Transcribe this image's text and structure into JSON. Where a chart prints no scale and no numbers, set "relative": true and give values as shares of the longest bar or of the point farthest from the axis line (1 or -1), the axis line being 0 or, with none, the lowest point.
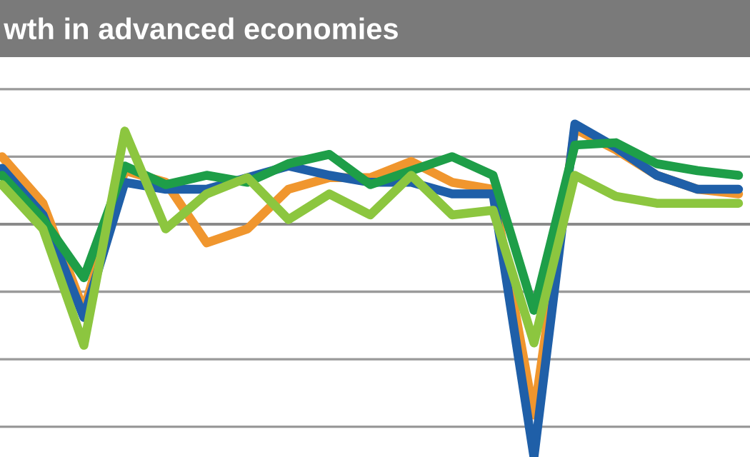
{
  "chart_data": {
    "type": "line",
    "title": "wth in advanced economies",
    "relative": true,
    "grid": "y",
    "categories": [
      null,
      null,
      null,
      null,
      null,
      null,
      null,
      null,
      null,
      null,
      null,
      null,
      null,
      null,
      null,
      null,
      null,
      null,
      null
    ],
    "series": [
      {
        "color": "#f0962e",
        "values": [
          0.29,
          0.09,
          -0.37,
          0.23,
          0.18,
          -0.08,
          -0.02,
          0.15,
          0.2,
          0.2,
          0.27,
          0.18,
          0.15,
          -0.82,
          0.41,
          0.32,
          0.21,
          0.15,
          0.13
        ]
      },
      {
        "color": "#1f5fa8",
        "values": [
          0.24,
          0.04,
          -0.4,
          0.18,
          0.15,
          0.15,
          0.2,
          0.25,
          0.21,
          0.18,
          0.18,
          0.13,
          0.13,
          -1,
          0.43,
          0.33,
          0.21,
          0.15,
          0.15
        ]
      },
      {
        "color": "#1e9e48",
        "values": [
          0.21,
          0.02,
          -0.23,
          0.25,
          0.17,
          0.21,
          0.18,
          0.26,
          0.3,
          0.17,
          0.23,
          0.29,
          0.21,
          -0.37,
          0.34,
          0.35,
          0.26,
          0.23,
          0.21
        ]
      },
      {
        "color": "#8cc63f",
        "values": [
          0.17,
          -0.02,
          -0.52,
          0.4,
          -0.02,
          0.13,
          0.2,
          0.02,
          0.13,
          0.04,
          0.21,
          0.04,
          0.06,
          -0.51,
          0.21,
          0.12,
          0.09,
          0.09,
          0.09
        ]
      }
    ]
  }
}
